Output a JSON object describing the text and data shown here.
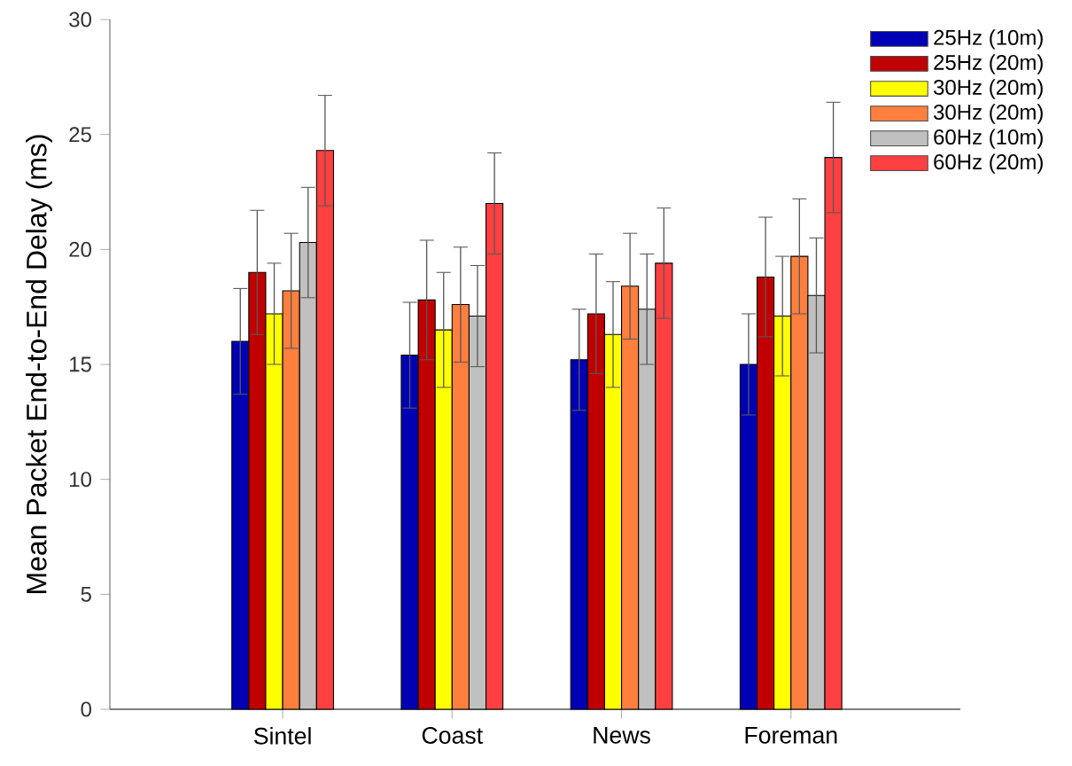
{
  "chart_data": {
    "type": "bar",
    "ylabel": "Mean Packet End-to-End Delay (ms)",
    "categories": [
      "Sintel",
      "Coast",
      "News",
      "Foreman"
    ],
    "ylim": [
      0,
      30
    ],
    "yticks": [
      0,
      5,
      10,
      15,
      20,
      25,
      30
    ],
    "legend": "top right",
    "series": [
      {
        "name": "25Hz (10m)",
        "color": "#0000b4",
        "values": [
          16.0,
          15.4,
          15.2,
          15.0
        ],
        "errors": [
          2.3,
          2.3,
          2.2,
          2.2
        ]
      },
      {
        "name": "25Hz (20m)",
        "color": "#c00000",
        "values": [
          19.0,
          17.8,
          17.2,
          18.8
        ],
        "errors": [
          2.7,
          2.6,
          2.6,
          2.6
        ]
      },
      {
        "name": "30Hz (20m)",
        "color": "#ffff00",
        "values": [
          17.2,
          16.5,
          16.3,
          17.1
        ],
        "errors": [
          2.2,
          2.5,
          2.3,
          2.6
        ]
      },
      {
        "name": "30Hz (20m)",
        "color": "#ff7f3f",
        "values": [
          18.2,
          17.6,
          18.4,
          19.7
        ],
        "errors": [
          2.5,
          2.5,
          2.3,
          2.5
        ]
      },
      {
        "name": "60Hz (10m)",
        "color": "#c0c0c0",
        "values": [
          20.3,
          17.1,
          17.4,
          18.0
        ],
        "errors": [
          2.4,
          2.2,
          2.4,
          2.5
        ]
      },
      {
        "name": "60Hz (20m)",
        "color": "#ff4040",
        "values": [
          24.3,
          22.0,
          19.4,
          24.0
        ],
        "errors": [
          2.4,
          2.2,
          2.4,
          2.4
        ]
      }
    ]
  }
}
